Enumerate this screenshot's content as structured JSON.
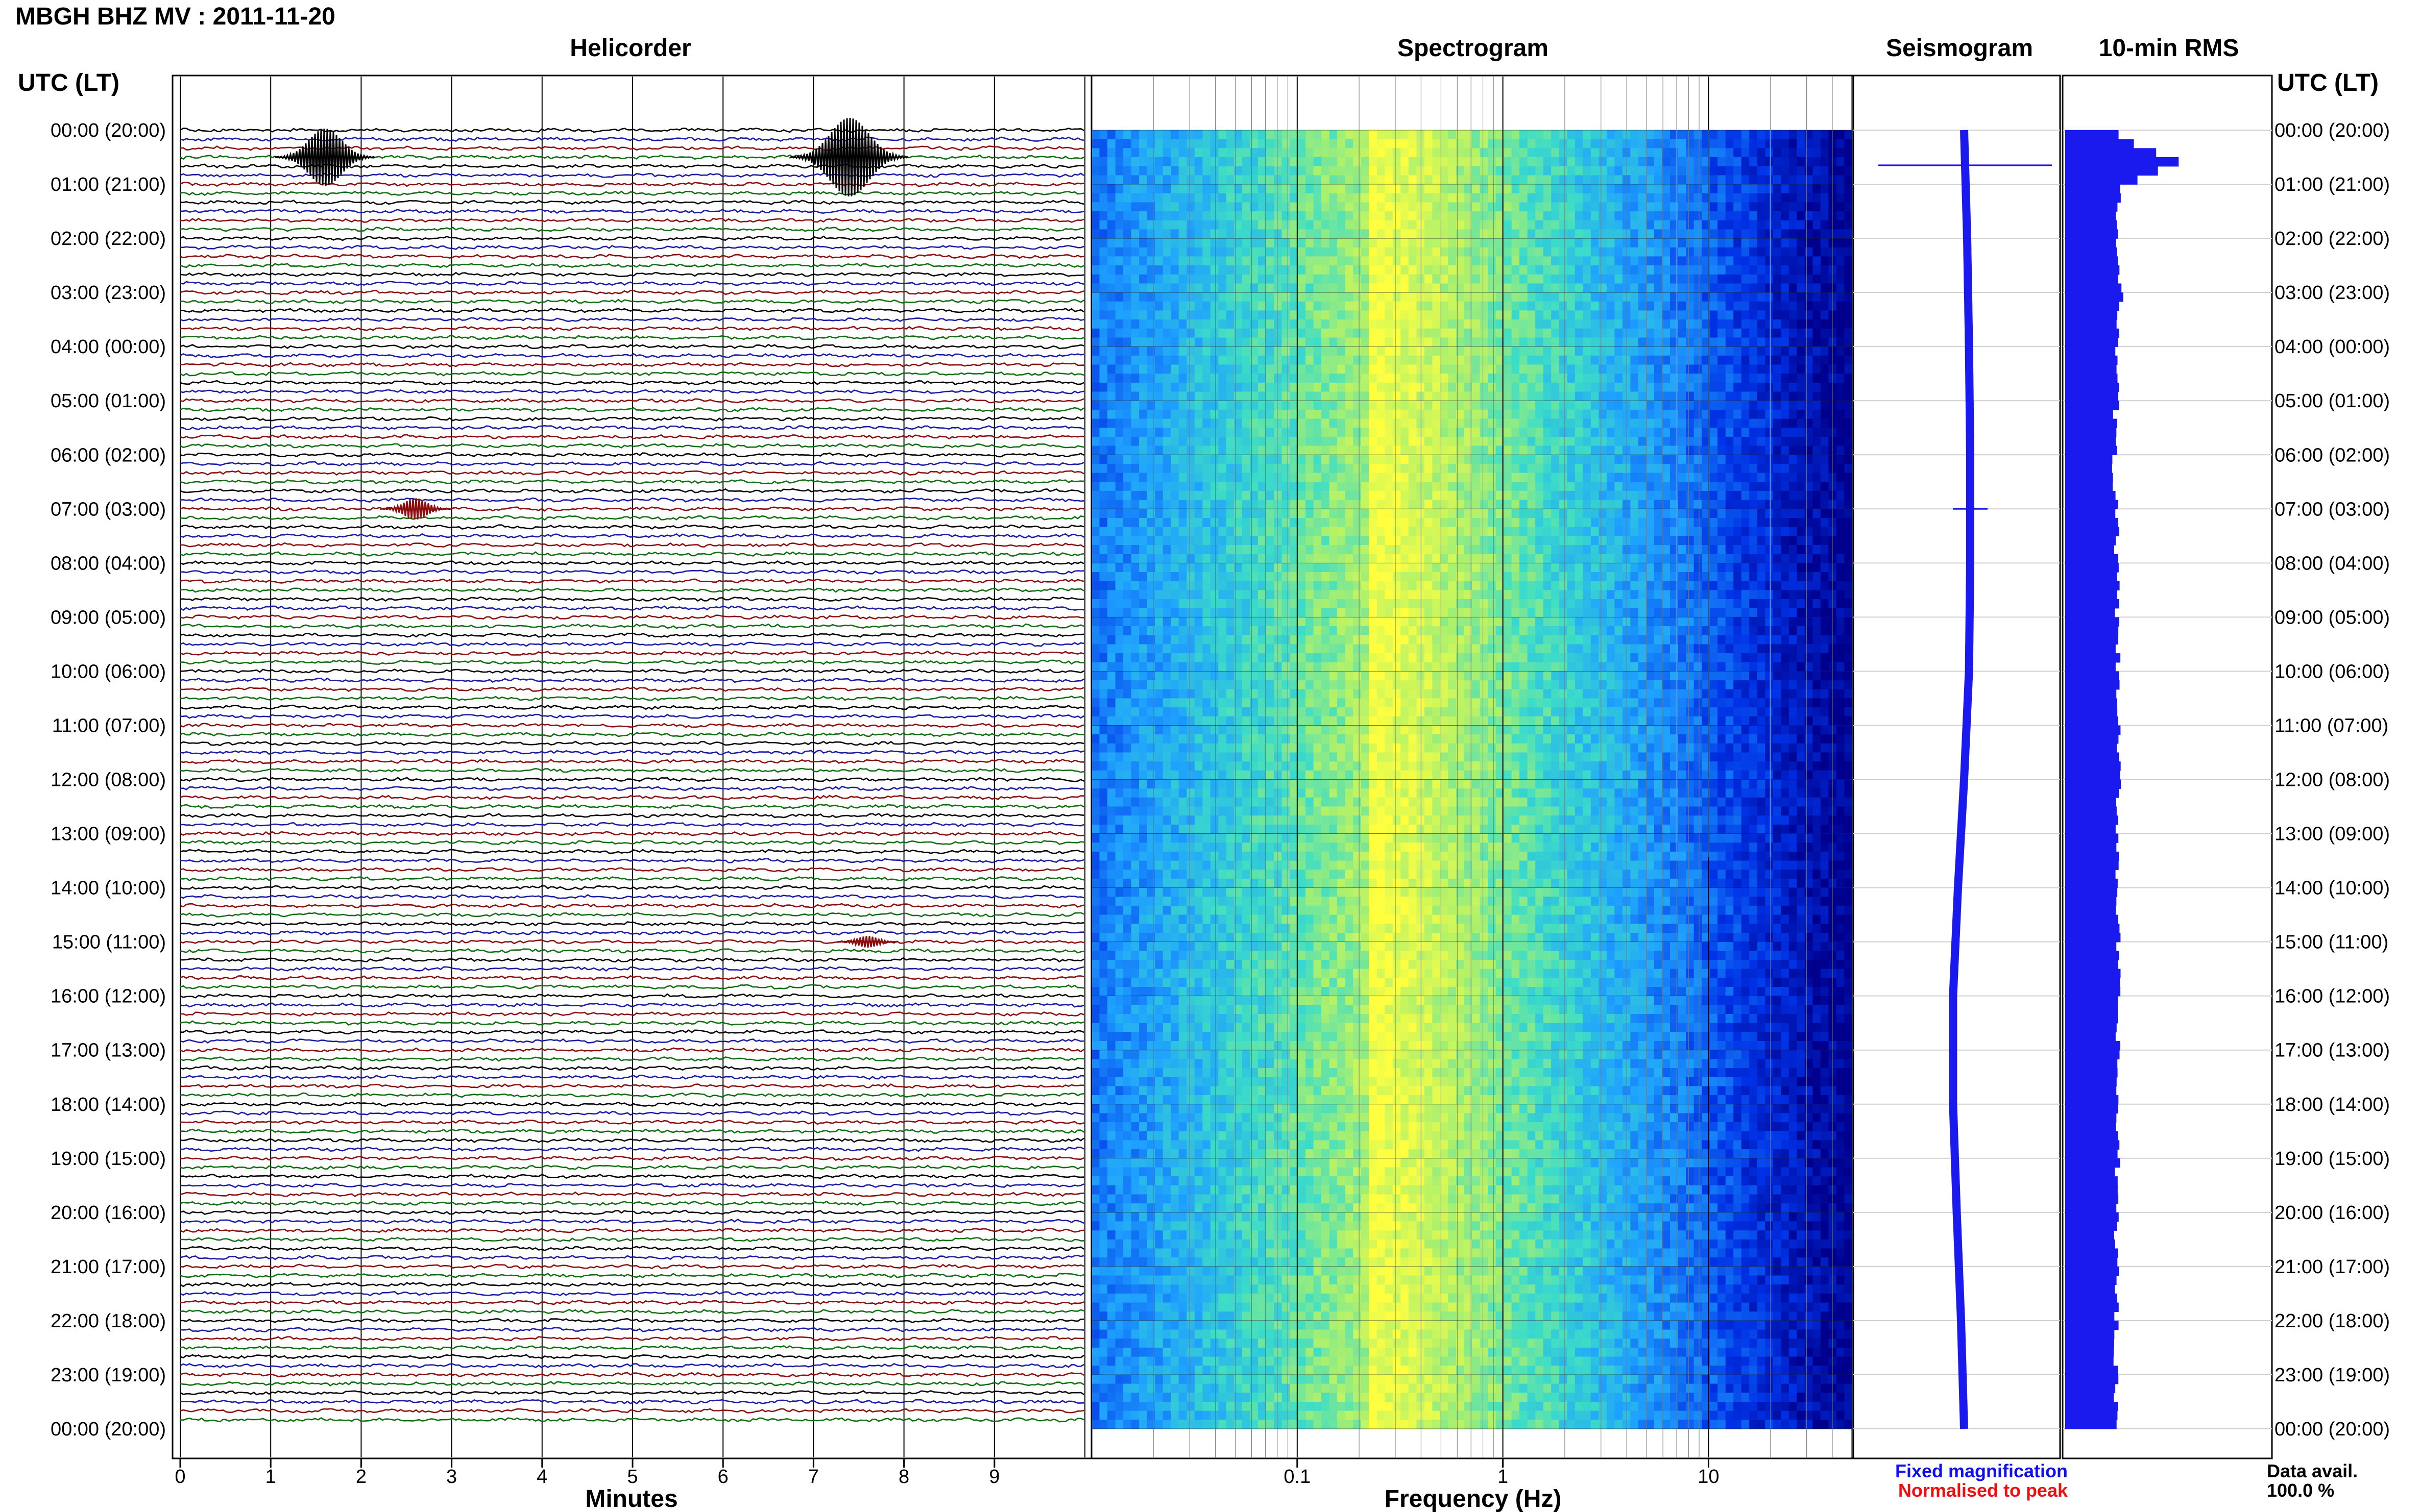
{
  "station_title": "MBGH BHZ MV : 2011-11-20",
  "panels": {
    "helicorder": "Helicorder",
    "spectrogram": "Spectrogram",
    "seismogram": "Seismogram",
    "rms": "10-min RMS"
  },
  "time_axis_label": "UTC (LT)",
  "time_ticks": [
    "00:00 (20:00)",
    "01:00 (21:00)",
    "02:00 (22:00)",
    "03:00 (23:00)",
    "04:00 (00:00)",
    "05:00 (01:00)",
    "06:00 (02:00)",
    "07:00 (03:00)",
    "08:00 (04:00)",
    "09:00 (05:00)",
    "10:00 (06:00)",
    "11:00 (07:00)",
    "12:00 (08:00)",
    "13:00 (09:00)",
    "14:00 (10:00)",
    "15:00 (11:00)",
    "16:00 (12:00)",
    "17:00 (13:00)",
    "18:00 (14:00)",
    "19:00 (15:00)",
    "20:00 (16:00)",
    "21:00 (17:00)",
    "22:00 (18:00)",
    "23:00 (19:00)",
    "00:00 (20:00)"
  ],
  "legend": {
    "fixed": "Fixed magnification",
    "normalised": "Normalised to peak",
    "fixed_color": "#1010ee",
    "normalised_color": "#ee1010"
  },
  "data_avail": {
    "label": "Data avail.",
    "value": "100.0 %"
  },
  "colors": {
    "trace_cycle": [
      "#000000",
      "#1a1aa6",
      "#8b0d0d",
      "#0f6e0f"
    ],
    "spectrogram_low": "#00008b",
    "spectrogram_high": "#ffff40",
    "rms_bar": "#1a1aee"
  },
  "chart_data": [
    {
      "type": "line",
      "panel": "helicorder",
      "xlabel": "Minutes",
      "x_ticks": [
        "0",
        "1",
        "2",
        "3",
        "4",
        "5",
        "6",
        "7",
        "8",
        "9"
      ],
      "xlim": [
        0,
        10
      ],
      "rows": 144,
      "minutes_per_row": 10,
      "events": [
        {
          "hour": 0.5,
          "minute": 1.6,
          "amplitude": 4.0,
          "color_index": 0
        },
        {
          "hour": 0.5,
          "minute": 7.4,
          "amplitude": 5.5,
          "color_index": 0
        },
        {
          "hour": 7.0,
          "minute": 2.6,
          "amplitude": 1.5,
          "color_index": 2
        },
        {
          "hour": 15.0,
          "minute": 7.6,
          "amplitude": 0.8,
          "color_index": 2
        }
      ]
    },
    {
      "type": "heatmap",
      "panel": "spectrogram",
      "xlabel": "Frequency (Hz)",
      "x_scale": "log",
      "xlim": [
        0.01,
        50
      ],
      "x_ticks": [
        "0.1",
        "1",
        "10"
      ],
      "peak_frequency_hz": 0.22,
      "lines_hz": [
        7,
        10,
        20
      ]
    },
    {
      "type": "line",
      "panel": "seismogram",
      "note_hours": [
        0,
        2,
        4,
        6,
        8,
        10,
        12,
        14,
        16,
        18,
        20,
        22,
        24
      ],
      "offset": [
        0.0,
        0.05,
        0.08,
        0.1,
        0.1,
        0.08,
        0.0,
        -0.1,
        -0.18,
        -0.18,
        -0.12,
        -0.05,
        0.0
      ],
      "spikes": [
        {
          "hour": 0.65,
          "amplitude": 1.0
        },
        {
          "hour": 7.0,
          "amplitude": 0.2
        }
      ]
    },
    {
      "type": "bar",
      "panel": "rms",
      "x": [
        0,
        0.5,
        1,
        2,
        3,
        6,
        7,
        12,
        24
      ],
      "values": [
        0.25,
        0.55,
        0.26,
        0.25,
        0.27,
        0.24,
        0.25,
        0.26,
        0.25
      ]
    }
  ]
}
